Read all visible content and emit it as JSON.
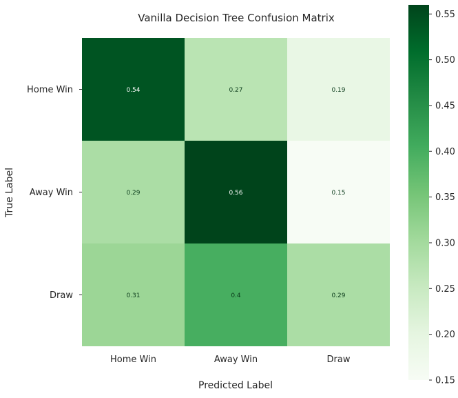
{
  "chart_data": {
    "type": "heatmap",
    "title": "Vanilla Decision Tree Confusion Matrix",
    "xlabel": "Predicted Label",
    "ylabel": "True Label",
    "x_categories": [
      "Home Win",
      "Away Win",
      "Draw"
    ],
    "y_categories": [
      "Home Win",
      "Away Win",
      "Draw"
    ],
    "values": [
      [
        0.54,
        0.27,
        0.19
      ],
      [
        0.29,
        0.56,
        0.15
      ],
      [
        0.31,
        0.4,
        0.29
      ]
    ],
    "cell_labels": [
      [
        "0.54",
        "0.27",
        "0.19"
      ],
      [
        "0.29",
        "0.56",
        "0.15"
      ],
      [
        "0.31",
        "0.4",
        "0.29"
      ]
    ],
    "colorbar": {
      "range": [
        0.15,
        0.56
      ],
      "ticks": [
        "0.15",
        "0.20",
        "0.25",
        "0.30",
        "0.35",
        "0.40",
        "0.45",
        "0.50",
        "0.55"
      ],
      "colormap": "Greens",
      "color_low": "#f7fcf5",
      "color_high": "#00441b"
    }
  }
}
